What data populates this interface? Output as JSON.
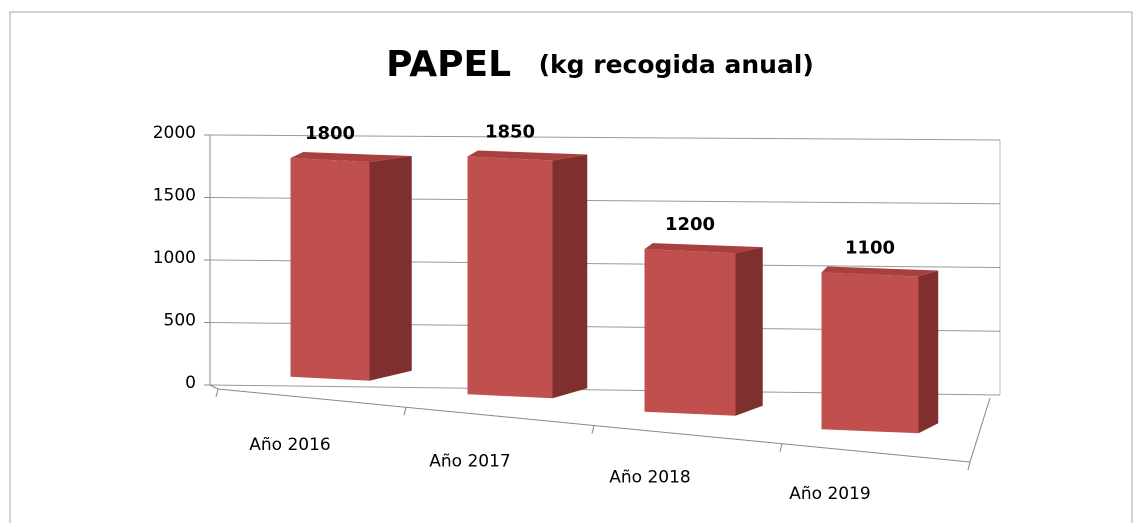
{
  "chart_data": {
    "type": "bar3d",
    "title": "PAPEL",
    "subtitle": "(kg recogida anual)",
    "categories": [
      "Año 2016",
      "Año 2017",
      "Año 2018",
      "Año 2019"
    ],
    "values": [
      1800,
      1850,
      1200,
      1100
    ],
    "color": "#c0504d",
    "ylim": [
      0,
      2000
    ],
    "yticks": [
      0,
      500,
      1000,
      1500,
      2000
    ],
    "grid": true
  }
}
